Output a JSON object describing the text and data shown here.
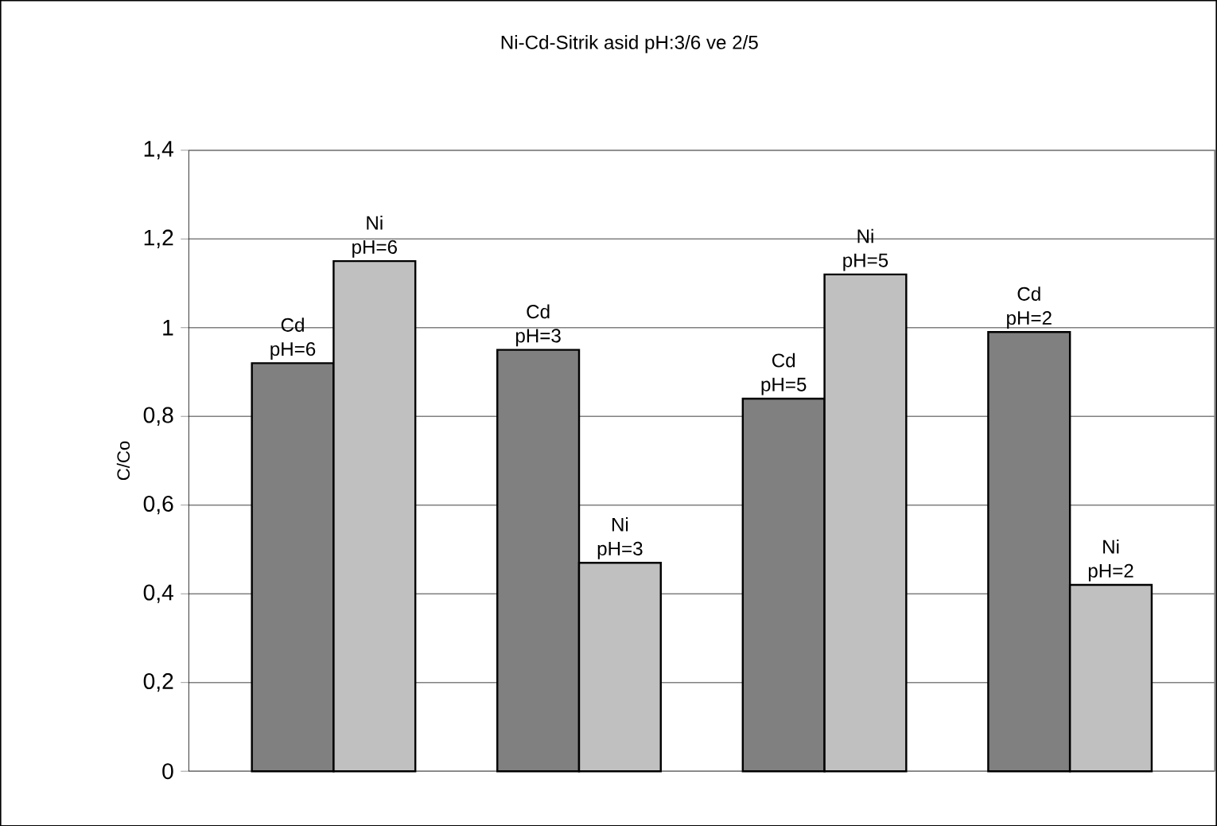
{
  "chart_data": {
    "type": "bar",
    "title": "Ni-Cd-Sitrik asid pH:3/6 ve 2/5",
    "ylabel": "C/Co",
    "categories": [
      null,
      null,
      null,
      null
    ],
    "series": [
      {
        "color": "#808080",
        "values": [
          0.92,
          0.95,
          0.84,
          0.99
        ]
      },
      {
        "color": "#c0c0c0",
        "values": [
          1.15,
          0.47,
          1.12,
          0.42
        ]
      }
    ],
    "ylim": [
      0,
      1.4
    ],
    "yticks": [
      0,
      {
        "value": 0.2,
        "label": "0,2"
      },
      {
        "value": 0.4,
        "label": "0,4"
      },
      {
        "value": 0.6,
        "label": "0,6"
      },
      {
        "value": 0.8,
        "label": "0,8"
      },
      1,
      {
        "value": 1.2,
        "label": "1,2"
      },
      {
        "value": 1.4,
        "label": "1,4"
      }
    ],
    "grid": "y",
    "annotations": [
      {
        "text": "Cd pH=6",
        "y": 0.92
      },
      {
        "text": "Ni pH=6",
        "y": 1.15
      },
      {
        "text": "Cd pH=3",
        "y": 0.95
      },
      {
        "text": "Ni pH=3",
        "y": 0.47
      },
      {
        "text": "Cd pH=5",
        "y": 0.84
      },
      {
        "text": "Ni pH=5",
        "y": 1.12
      },
      {
        "text": "Cd pH=2",
        "y": 0.99
      },
      {
        "text": "Ni pH=2",
        "y": 0.42
      }
    ]
  }
}
